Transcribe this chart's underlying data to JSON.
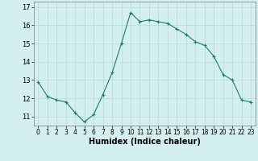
{
  "x": [
    0,
    1,
    2,
    3,
    4,
    5,
    6,
    7,
    8,
    9,
    10,
    11,
    12,
    13,
    14,
    15,
    16,
    17,
    18,
    19,
    20,
    21,
    22,
    23
  ],
  "y": [
    12.9,
    12.1,
    11.9,
    11.8,
    11.2,
    10.7,
    11.1,
    12.2,
    13.4,
    15.0,
    16.7,
    16.2,
    16.3,
    16.2,
    16.1,
    15.8,
    15.5,
    15.1,
    14.9,
    14.3,
    13.3,
    13.0,
    11.9,
    11.8
  ],
  "xlabel": "Humidex (Indice chaleur)",
  "line_color": "#1a7a6e",
  "marker": "+",
  "bg_color": "#d4efef",
  "grid_color": "#b8dcdc",
  "ylim": [
    10.5,
    17.3
  ],
  "xlim": [
    -0.5,
    23.5
  ],
  "yticks": [
    11,
    12,
    13,
    14,
    15,
    16,
    17
  ],
  "xticks": [
    0,
    1,
    2,
    3,
    4,
    5,
    6,
    7,
    8,
    9,
    10,
    11,
    12,
    13,
    14,
    15,
    16,
    17,
    18,
    19,
    20,
    21,
    22,
    23
  ]
}
